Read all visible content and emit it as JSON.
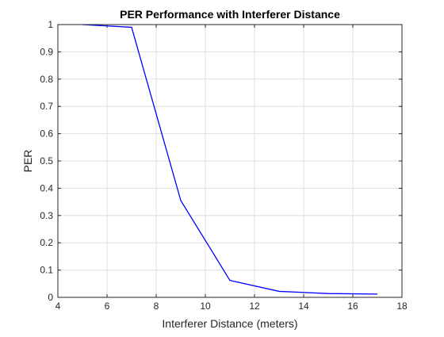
{
  "chart_data": {
    "type": "line",
    "title": "PER Performance with Interferer Distance",
    "xlabel": "Interferer Distance (meters)",
    "ylabel": "PER",
    "xlim": [
      4,
      18
    ],
    "ylim": [
      0,
      1
    ],
    "xticks": [
      4,
      6,
      8,
      10,
      12,
      14,
      16,
      18
    ],
    "yticks": [
      0,
      0.1,
      0.2,
      0.3,
      0.4,
      0.5,
      0.6,
      0.7,
      0.8,
      0.9,
      1
    ],
    "xtick_labels": [
      "4",
      "6",
      "8",
      "10",
      "12",
      "14",
      "16",
      "18"
    ],
    "ytick_labels": [
      "0",
      "0.1",
      "0.2",
      "0.3",
      "0.4",
      "0.5",
      "0.6",
      "0.7",
      "0.8",
      "0.9",
      "1"
    ],
    "grid": true,
    "series": [
      {
        "color": "#0000ff",
        "x": [
          5,
          7,
          9,
          11,
          13,
          15,
          17
        ],
        "y": [
          1.0,
          0.99,
          0.355,
          0.062,
          0.022,
          0.014,
          0.012
        ]
      }
    ]
  }
}
